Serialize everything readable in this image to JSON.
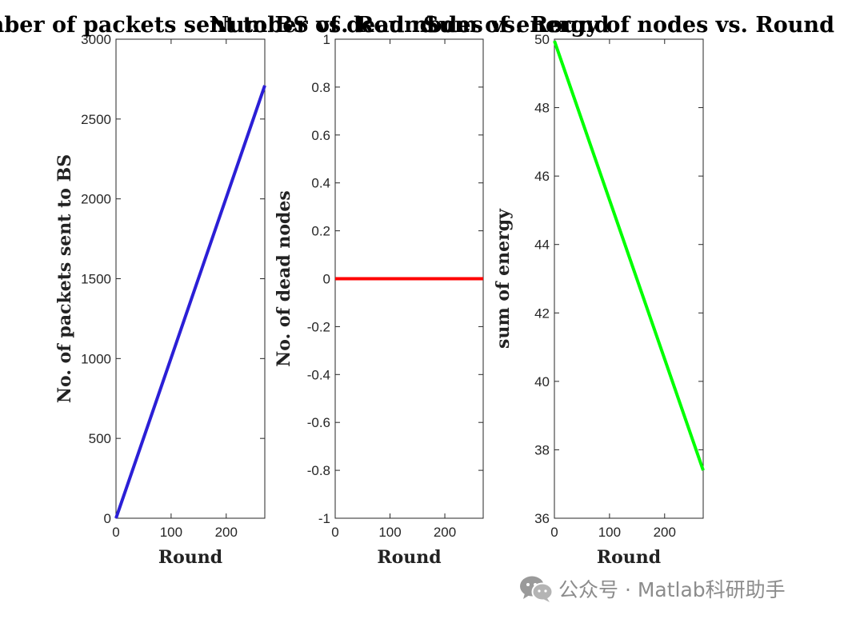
{
  "chart_data": [
    {
      "type": "line",
      "title": "Number of packets sent to BS vs. Round",
      "xlabel": "Round",
      "ylabel": "No. of packets sent to BS",
      "xlim": [
        0,
        270
      ],
      "ylim": [
        0,
        3000
      ],
      "xticks": [
        0,
        100,
        200
      ],
      "yticks": [
        0,
        500,
        1000,
        1500,
        2000,
        2500,
        3000
      ],
      "grid": false,
      "series": [
        {
          "color": "#2b1fd6",
          "x": [
            0,
            270
          ],
          "y": [
            0,
            2710
          ]
        }
      ]
    },
    {
      "type": "line",
      "title": "Number of dead nodes vs. Round",
      "xlabel": "Round",
      "ylabel": "No. of dead nodes",
      "xlim": [
        0,
        270
      ],
      "ylim": [
        -1,
        1
      ],
      "xticks": [
        0,
        100,
        200
      ],
      "yticks": [
        -1,
        -0.8,
        -0.6,
        -0.4,
        -0.2,
        0,
        0.2,
        0.4,
        0.6,
        0.8,
        1
      ],
      "grid": false,
      "series": [
        {
          "color": "#ff0000",
          "x": [
            0,
            270
          ],
          "y": [
            0,
            0
          ]
        }
      ]
    },
    {
      "type": "line",
      "title": "Sum of energy of nodes vs. Round",
      "xlabel": "Round",
      "ylabel": "sum of energy",
      "xlim": [
        0,
        270
      ],
      "ylim": [
        36,
        50
      ],
      "xticks": [
        0,
        100,
        200
      ],
      "yticks": [
        36,
        38,
        40,
        42,
        44,
        46,
        48,
        50
      ],
      "grid": false,
      "series": [
        {
          "color": "#00ff00",
          "x": [
            0,
            270
          ],
          "y": [
            49.95,
            37.4
          ]
        }
      ]
    }
  ],
  "watermark": {
    "icon": "wechat-icon",
    "text": "公众号 · Matlab科研助手"
  }
}
